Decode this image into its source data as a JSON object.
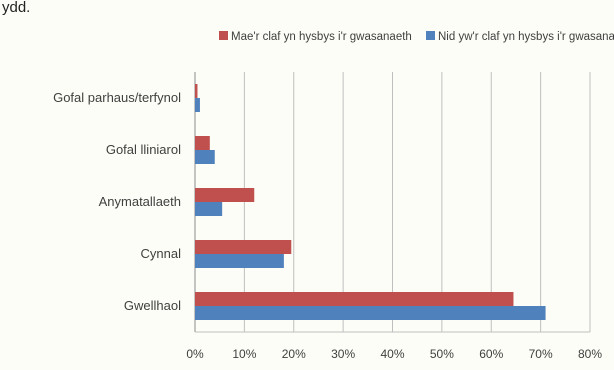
{
  "header_fragment": "ydd.",
  "chart_data": {
    "type": "bar",
    "orientation": "horizontal",
    "title": "",
    "xlabel": "",
    "ylabel": "",
    "categories": [
      "Gofal parhaus/terfynol",
      "Gofal lliniarol",
      "Anymatallaeth",
      "Cynnal",
      "Gwellhaol"
    ],
    "series": [
      {
        "name": "Mae'r claf yn hysbys i'r gwasanaeth",
        "color": "#c0504d",
        "values": [
          0.5,
          3,
          12,
          19.5,
          64.5
        ]
      },
      {
        "name": "Nid yw'r claf yn hysbys i'r gwasanaeth",
        "color": "#4f81bd",
        "values": [
          1,
          4,
          5.5,
          18,
          71
        ]
      }
    ],
    "xlim": [
      0,
      80
    ],
    "xticks": [
      "0%",
      "10%",
      "20%",
      "30%",
      "40%",
      "50%",
      "60%",
      "70%",
      "80%"
    ],
    "grid": true,
    "legend_position": "top"
  }
}
